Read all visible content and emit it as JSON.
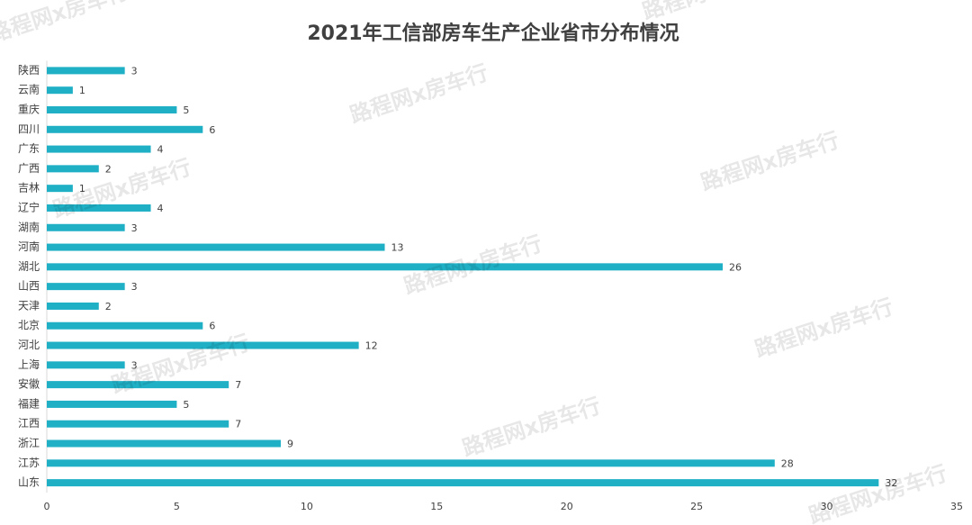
{
  "chart_data": {
    "type": "bar",
    "orientation": "horizontal",
    "title": "2021年工信部房车生产企业省市分布情况",
    "watermark": "路程网x房车行",
    "categories": [
      "陕西",
      "云南",
      "重庆",
      "四川",
      "广东",
      "广西",
      "吉林",
      "辽宁",
      "湖南",
      "河南",
      "湖北",
      "山西",
      "天津",
      "北京",
      "河北",
      "上海",
      "安徽",
      "福建",
      "江西",
      "浙江",
      "江苏",
      "山东"
    ],
    "values": [
      3,
      1,
      5,
      6,
      4,
      2,
      1,
      4,
      3,
      13,
      26,
      3,
      2,
      6,
      12,
      3,
      7,
      5,
      7,
      9,
      28,
      32
    ],
    "color": "#1fb0c6",
    "xlim": [
      0,
      35
    ],
    "xticks": [
      0,
      5,
      10,
      15,
      20,
      25,
      30,
      35
    ],
    "grid": false
  }
}
